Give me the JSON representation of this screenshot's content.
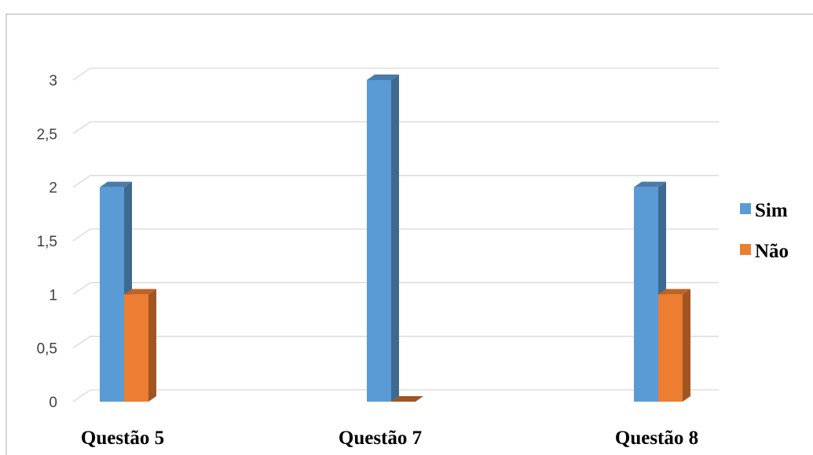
{
  "chart_data": {
    "type": "bar",
    "categories": [
      "Questão 5",
      "Questão 7",
      "Questão 8"
    ],
    "series": [
      {
        "name": "Sim",
        "values": [
          2,
          3,
          2
        ],
        "color": "#5b9bd5"
      },
      {
        "name": "Não",
        "values": [
          1,
          0,
          1
        ],
        "color": "#ed7d31"
      }
    ],
    "yticks": [
      "0",
      "0,5",
      "1",
      "1,5",
      "2",
      "2,5",
      "3"
    ],
    "ylim": [
      0,
      3
    ],
    "grid": true,
    "legend_position": "right",
    "style": "3d-column"
  }
}
